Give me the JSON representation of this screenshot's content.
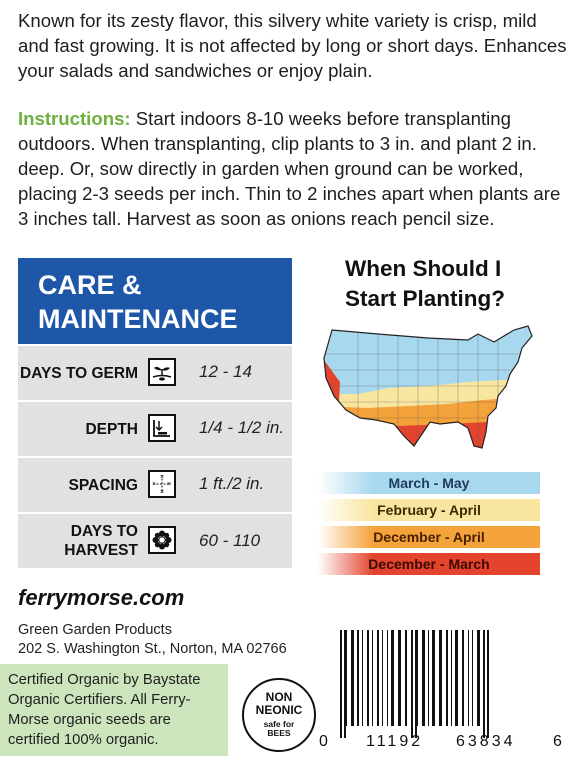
{
  "description": "Known for its zesty flavor, this silvery white variety is crisp, mild and fast growing. It is not affected by long or short days. Enhances your salads and sandwiches or enjoy plain.",
  "instructions": {
    "label": "Instructions:",
    "text": "Start indoors 8-10 weeks before transplanting outdoors. When transplanting, clip plants to 3 in. and plant 2 in. deep. Or, sow directly in garden when ground can be worked, placing 2-3 seeds per inch. Thin to 2 inches apart when plants are 3 inches tall. Harvest as soon as onions reach pencil size."
  },
  "care": {
    "title_line1": "CARE &",
    "title_line2": "MAINTENANCE",
    "rows": [
      {
        "label": "DAYS TO GERM",
        "value": "12 - 14",
        "icon": "sprout-icon"
      },
      {
        "label": "DEPTH",
        "value": "1/4 - 1/2 in.",
        "icon": "depth-icon"
      },
      {
        "label": "SPACING",
        "value": "1 ft./2 in.",
        "icon": "spacing-icon"
      },
      {
        "label_line1": "DAYS TO",
        "label_line2": "HARVEST",
        "value": "60 - 110",
        "icon": "flower-icon"
      }
    ]
  },
  "planting": {
    "title_line1": "When Should I",
    "title_line2": "Start Planting?",
    "zones": [
      {
        "label": "March - May",
        "color": "#a8d8ee"
      },
      {
        "label": "February - April",
        "color": "#f8e6a0"
      },
      {
        "label": "December - April",
        "color": "#f4a23a"
      },
      {
        "label": "December - March",
        "color": "#e4432e"
      }
    ]
  },
  "website": "ferrymorse.com",
  "company": {
    "name": "Green Garden Products",
    "address": "202 S. Washington St., Norton, MA 02766"
  },
  "certification": "Certified Organic by Baystate Organic Certifiers. All Ferry-Morse organic seeds are certified 100% organic.",
  "badge": {
    "line1": "NON",
    "line2": "NEONIC",
    "line3": "safe for",
    "line4": "BEES"
  },
  "barcode": {
    "first": "0",
    "group1": "11192",
    "group2": "63834",
    "last": "6"
  }
}
